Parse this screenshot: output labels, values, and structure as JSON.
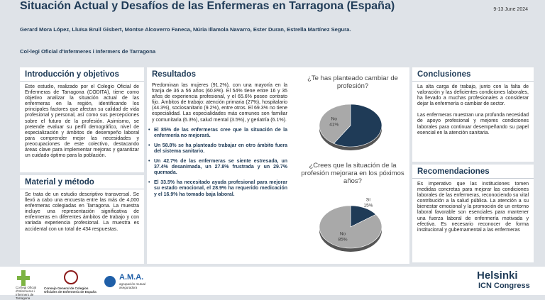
{
  "header": {
    "title": "Situación Actual y Desafíos de las Enfermeras en Tarragona (España)",
    "date": "9-13 June 2024",
    "authors": "Gerard Mora López, Lluïsa Bruil Gisbert, Montse Alcoverro Faneca, Núria Illamola Navarro, Ester Duran, Estrella Martínez Segura.",
    "affiliation": "Col·legi Oficial d'Infermeres i Infermers de Tarragona"
  },
  "introduccion": {
    "heading": "Introducción y objetivos",
    "text": "Este estudio, realizado por el Colegio Oficial de Enfermeras de Tarragona (CODITA), tiene como objetivo analizar la situación actual de las enfermeras en la región, identificando los principales factores que afectan su calidad de vida profesional y personal, así como sus percepciones sobre el futuro de la profesión. Asimismo, se pretende evaluar su perfil demográfico, nivel de especialización y ámbitos de desempeño laboral para comprender mejor las necesidades y preocupaciones de este colectivo, destacando áreas clave para implementar mejoras y garantizar un cuidado óptimo para la población."
  },
  "metodo": {
    "heading": "Material y método",
    "text": "Se trata de un estudio descriptivo transversal. Se llevó a cabo una encuesta entre las más de 4,000 enfermeras colegiadas en Tarragona. La muestra incluye una representación significativa de enfermeras en diferentes ámbitos de trabajo y con variada experiencia profesional. La muestra es accidental con un total de 434 respuestas."
  },
  "resultados": {
    "heading": "Resultados",
    "text": "Predominan las mujeres (91.2%), con una mayoría en la franja de 36 a 56 años (60.8%). El 54% tiene entre 16 y 35 años de experiencia profesional, y el 65.6% posee contrato fijo. Ámbitos de trabajo: atención primaria (27%), hospitalario (44.3%), sociosanitario (9.2%), entre otros. El 69.3% no tiene especialidad. Las especialidades más comunes son familiar y comunitaria (6.3%), salud mental (3.5%), y geriatría (6.1%).",
    "bullets": [
      "El 85% de las enfermeras cree que la situación de la enfermería no mejorará.",
      "Un 58.8% se ha planteado trabajar en otro ámbito fuera del sistema sanitario.",
      "Un 42.7% de las enfermeras se siente estresada, un 37.4% desanimada, un 27.8% frustrada y un 29.7% quemada.",
      "El 33.5% ha necesitado ayuda profesional para mejorar su estado emocional, el 28.9% ha requerido medicación y el 16.9% ha tomado baja laboral."
    ]
  },
  "chart_data": [
    {
      "type": "pie",
      "title": "¿Te has planteado cambiar de profesión?",
      "categories": [
        "No",
        null
      ],
      "values": [
        41,
        59
      ],
      "value_labels": [
        "41%",
        null
      ],
      "colors": [
        "#a9a9a9",
        "#1f3b57"
      ]
    },
    {
      "type": "pie",
      "title": "¿Crees que la situación de la profesión mejorara en los póximos años?",
      "categories": [
        "Sí",
        "No"
      ],
      "values": [
        15,
        85
      ],
      "value_labels": [
        "15%",
        "85%"
      ],
      "colors": [
        "#1f3b57",
        "#a9a9a9"
      ]
    }
  ],
  "conclusiones": {
    "heading": "Conclusiones",
    "paragraphs": [
      "La alta carga de trabajo, junto con la falta de valoración y las deficientes condiciones laborales, ha llevado a muchas profesionales a considerar dejar la enfermería o cambiar de sector.",
      "Las enfermeras muestran una profunda necesidad de apoyo profesional y mejores condiciones laborales para continuar desempeñando su papel esencial en la atención sanitaria."
    ]
  },
  "recomendaciones": {
    "heading": "Recomendaciones",
    "text": "Es imperativo que las instituciones tomen medidas concretas para mejorar las condiciones laborales de las enfermeras, reconociendo su vital contribución a la salud pública. La atención a su bienestar emocional y la promoción de un entorno laboral favorable son esenciales para mantener una fuerza laboral de enfermería motivada y efectiva. Es necesario reconocer de forma institucional y gubernamental a las enfermeras"
  },
  "footer": {
    "logo1": "Col·legi Oficial d'Infermeres i Infermers de Tarragona",
    "logo2": "Consejo General de Colegios Oficiales de Enfermería de España",
    "logo3": "A.M.A.",
    "logo3_sub": "agrupación mutual aseguradora",
    "logo4": "Helsinki",
    "logo4_sub": "ICN Congress"
  }
}
